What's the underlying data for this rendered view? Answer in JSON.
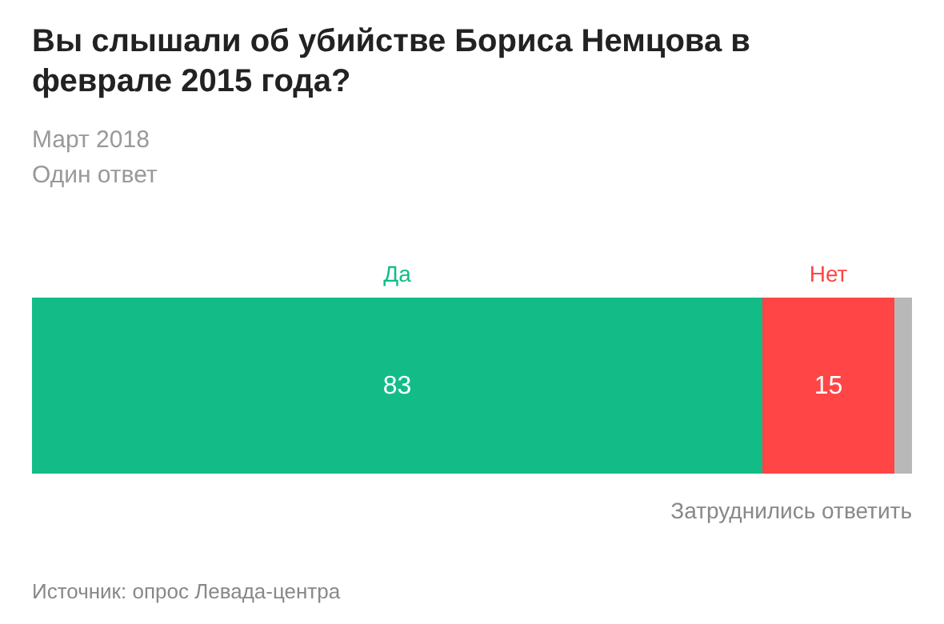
{
  "chart_data": {
    "type": "bar",
    "title": "Вы слышали об убийстве Бориса Немцова в феврале 2015 года?",
    "subtitle": "Март 2018",
    "annotations": [
      "Один ответ",
      "Источник: опрос Левада-центра"
    ],
    "categories": [
      null
    ],
    "orientation": "horizontal",
    "stacked": true,
    "xlim": [
      0,
      100
    ],
    "series": [
      {
        "name": "Да",
        "color": "#13bc87",
        "values": [
          83
        ],
        "value_labels": [
          "83"
        ]
      },
      {
        "name": "Нет",
        "color": "#ff4545",
        "values": [
          15
        ],
        "value_labels": [
          "15"
        ]
      },
      {
        "name": "Затруднились ответить",
        "color": "#b8b8b8",
        "values": [
          2
        ],
        "value_labels": [
          null
        ]
      }
    ]
  }
}
